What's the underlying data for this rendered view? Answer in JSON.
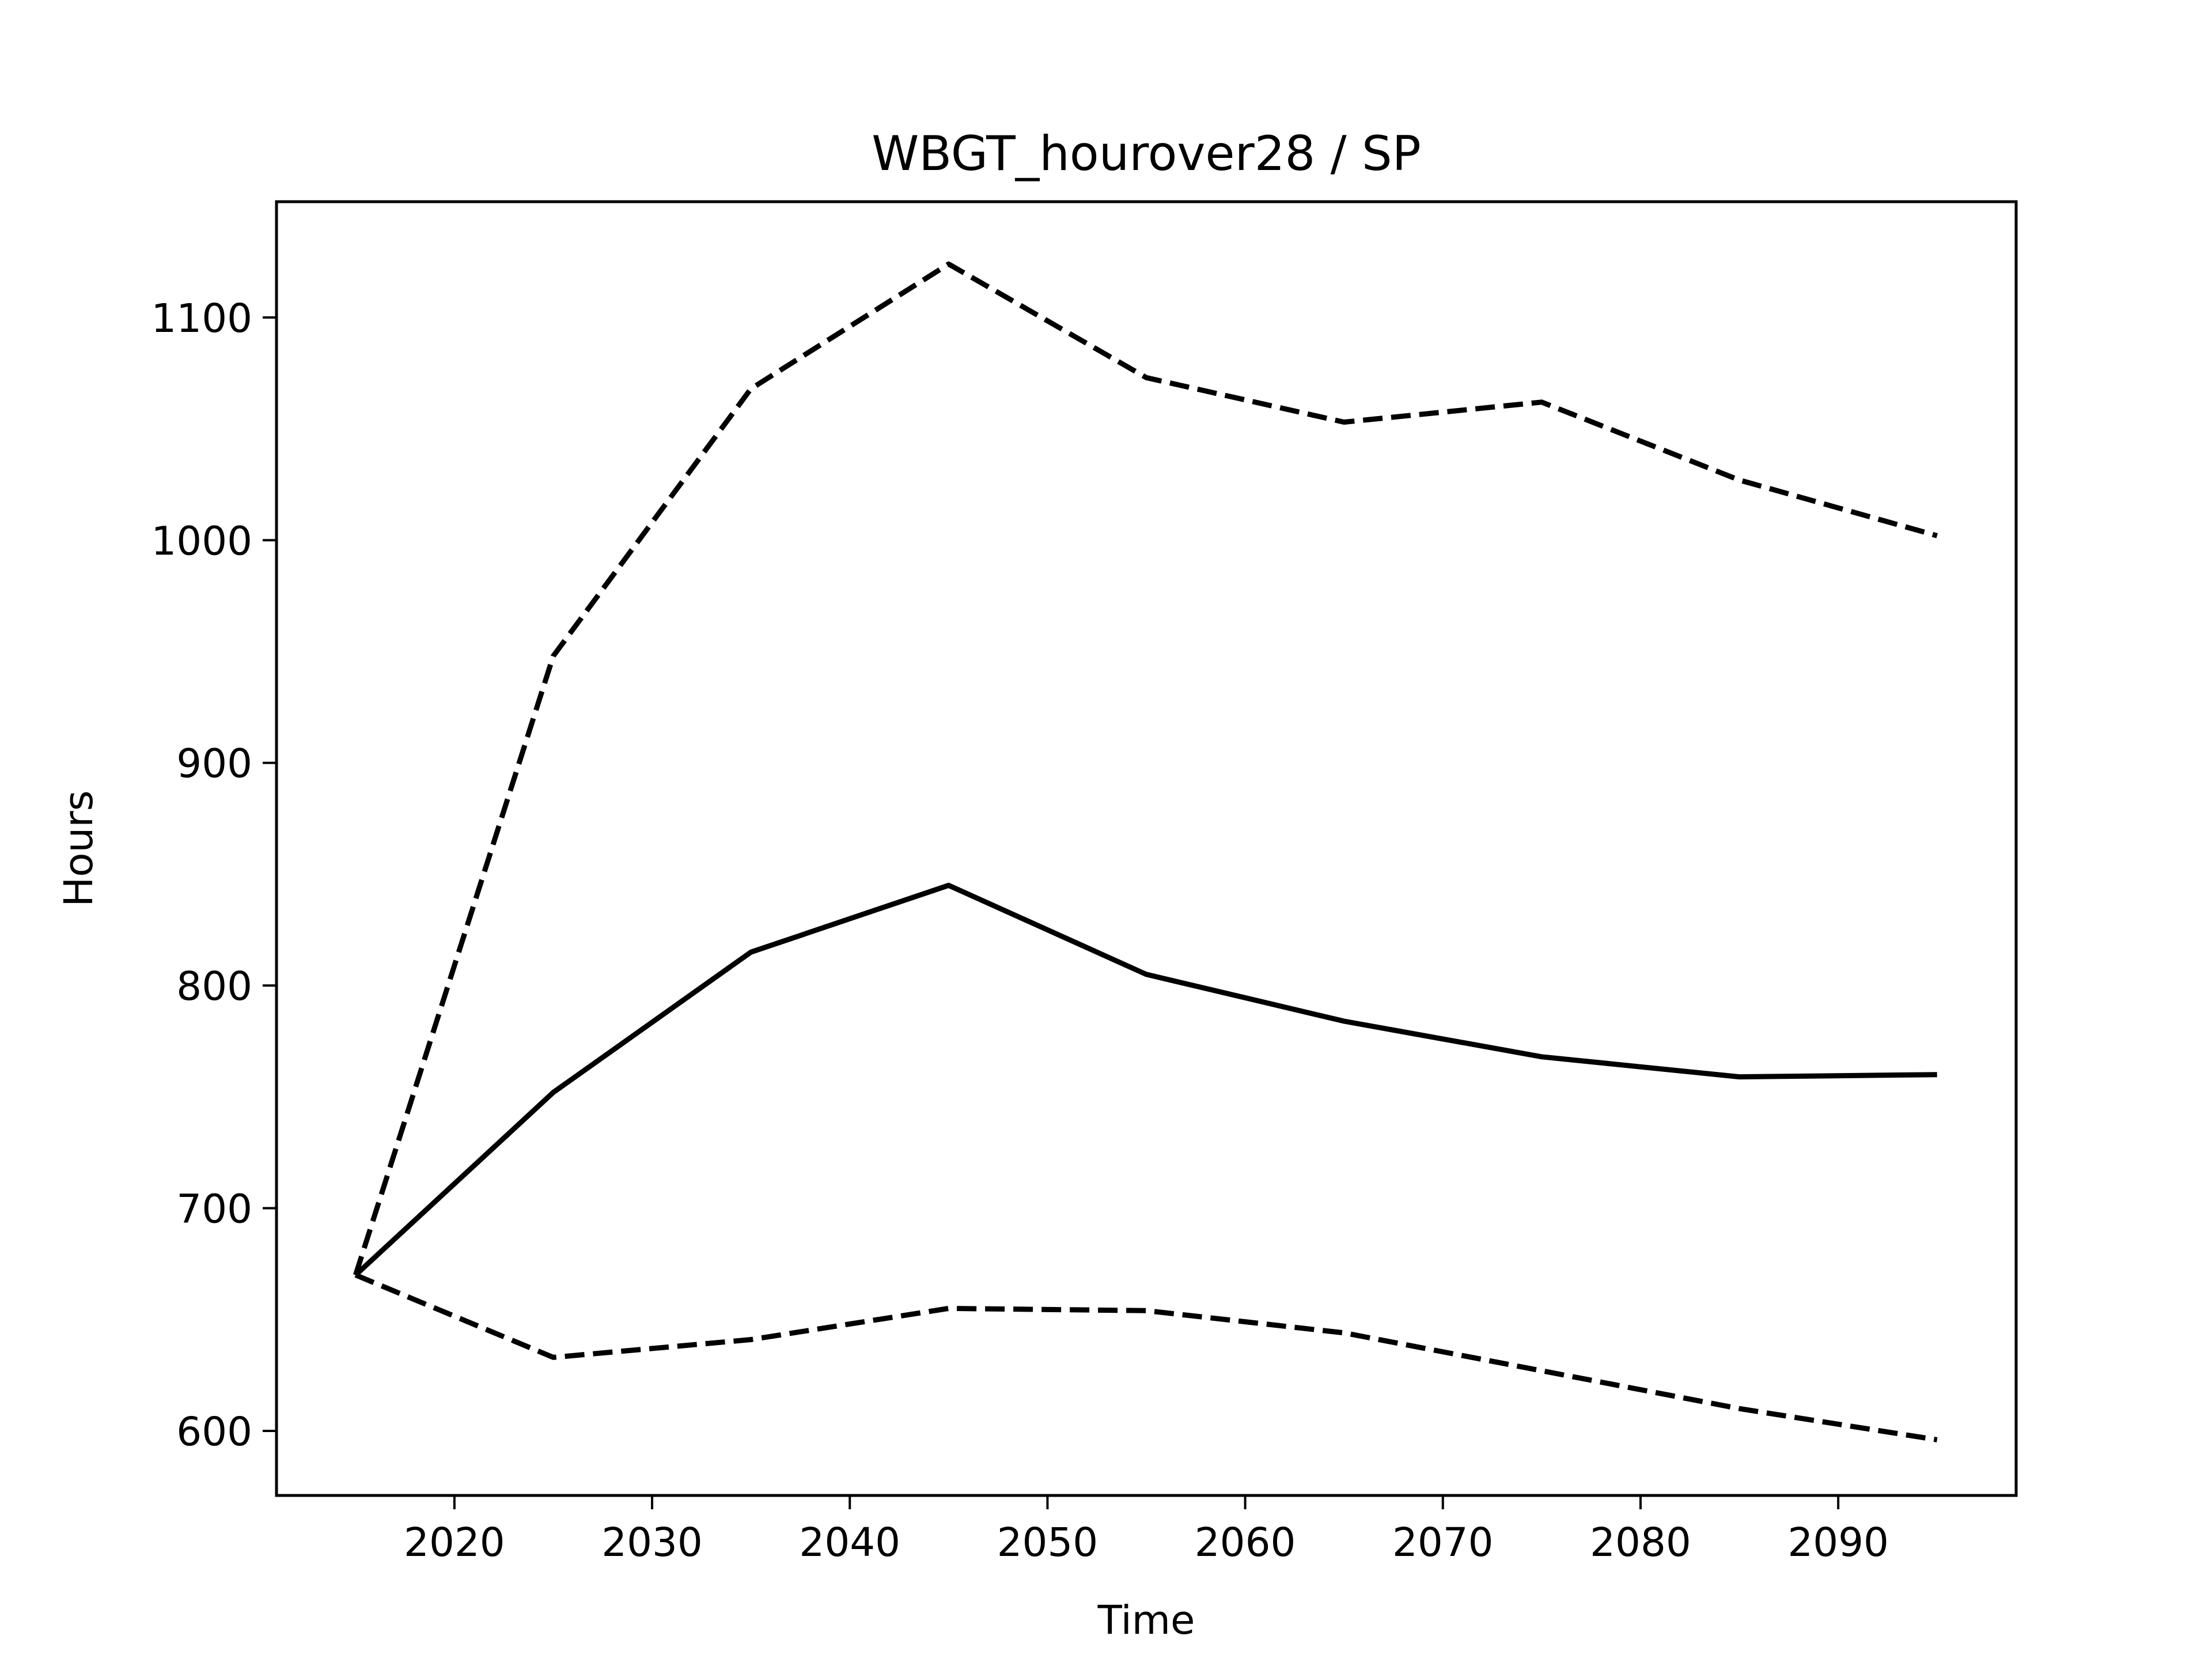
{
  "chart_data": {
    "type": "line",
    "title": "WBGT_hourover28 / SP",
    "xlabel": "Time",
    "ylabel": "Hours",
    "xlim": [
      2011,
      2099
    ],
    "ylim": [
      571,
      1152
    ],
    "xticks": [
      2020,
      2030,
      2040,
      2050,
      2060,
      2070,
      2080,
      2090
    ],
    "yticks": [
      600,
      700,
      800,
      900,
      1000,
      1100
    ],
    "grid": false,
    "legend": "none",
    "x": [
      2015,
      2025,
      2035,
      2045,
      2055,
      2065,
      2075,
      2085,
      2095
    ],
    "series": [
      {
        "style": "solid",
        "color": "#000000",
        "values": [
          670,
          752,
          815,
          845,
          805,
          784,
          768,
          759,
          760
        ]
      },
      {
        "style": "dashed",
        "color": "#000000",
        "values": [
          670,
          948,
          1068,
          1124,
          1073,
          1053,
          1062,
          1027,
          1002
        ]
      },
      {
        "style": "dashed",
        "color": "#000000",
        "values": [
          670,
          633,
          641,
          655,
          654,
          644,
          627,
          610,
          596
        ]
      }
    ]
  }
}
